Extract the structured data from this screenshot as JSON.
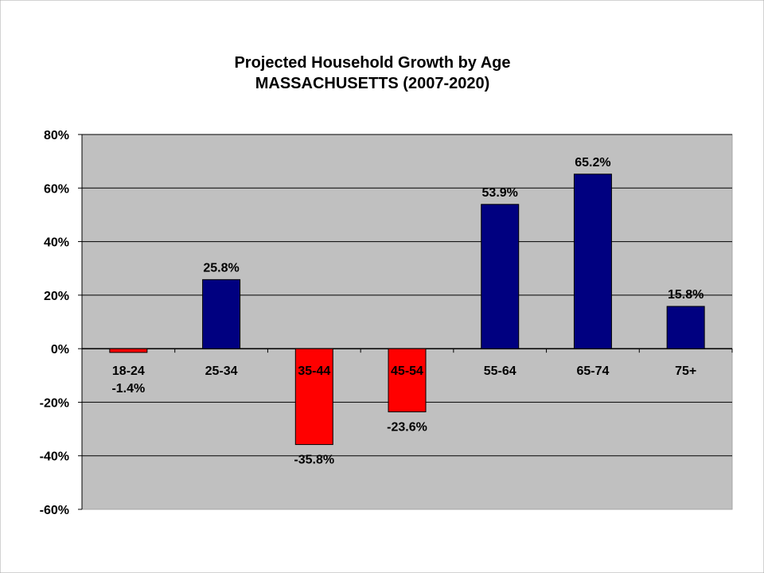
{
  "chart_data": {
    "type": "bar",
    "title": "Projected Household Growth by Age",
    "subtitle": "MASSACHUSETTS (2007-2020)",
    "xlabel": "",
    "ylabel": "",
    "categories": [
      "18-24",
      "25-34",
      "35-44",
      "45-54",
      "55-64",
      "65-74",
      "75+"
    ],
    "values": [
      -1.4,
      25.8,
      -35.8,
      -23.6,
      53.9,
      65.2,
      15.8
    ],
    "data_labels": [
      "-1.4%",
      "25.8%",
      "-35.8%",
      "-23.6%",
      "53.9%",
      "65.2%",
      "15.8%"
    ],
    "ylim": [
      -60,
      80
    ],
    "yticks": [
      80,
      60,
      40,
      20,
      0,
      -20,
      -40,
      -60
    ],
    "ytick_labels": [
      "80%",
      "60%",
      "40%",
      "20%",
      "0%",
      "-20%",
      "-40%",
      "-60%"
    ],
    "grid": true,
    "legend": "none",
    "colors": {
      "positive": "#000080",
      "negative": "#FF0000",
      "plot_background": "#C0C0C0",
      "page_background": "#FFFFFF",
      "gridline": "#000000",
      "frame": "#A6A6A6"
    }
  }
}
